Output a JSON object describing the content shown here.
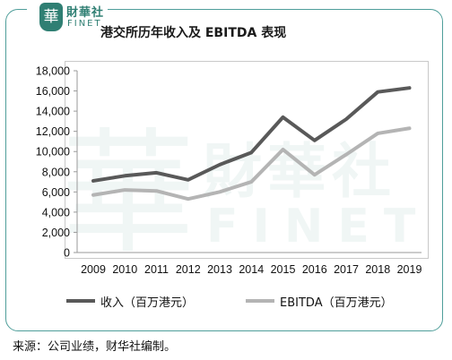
{
  "logo": {
    "glyph": "華",
    "name_cn": "財華社",
    "name_en": "FINET"
  },
  "watermark": {
    "glyph": "華",
    "cn": "財華社",
    "en": "FINET"
  },
  "colors": {
    "frame": "#4f9e9a",
    "logo": "#2f7f73",
    "revenue": "#595959",
    "ebitda": "#b4b4b4"
  },
  "chart_data": {
    "type": "line",
    "title": "港交所历年收入及 EBITDA 表现",
    "categories": [
      "2009",
      "2010",
      "2011",
      "2012",
      "2013",
      "2014",
      "2015",
      "2016",
      "2017",
      "2018",
      "2019"
    ],
    "series": [
      {
        "name": "收入（百万港元）",
        "values": [
          7100,
          7600,
          7900,
          7200,
          8700,
          9900,
          13400,
          11100,
          13200,
          15900,
          16300
        ]
      },
      {
        "name": "EBITDA（百万港元）",
        "values": [
          5700,
          6200,
          6100,
          5300,
          6000,
          7000,
          10200,
          7700,
          9700,
          11800,
          12300
        ]
      }
    ],
    "ylim": [
      0,
      18000
    ],
    "yticks": [
      "0",
      "2,000",
      "4,000",
      "6,000",
      "8,000",
      "10,000",
      "12,000",
      "14,000",
      "16,000",
      "18,000"
    ],
    "grid": false,
    "legend": "bottom"
  },
  "footer": {
    "source": "来源：公司业绩，财华社编制。"
  }
}
